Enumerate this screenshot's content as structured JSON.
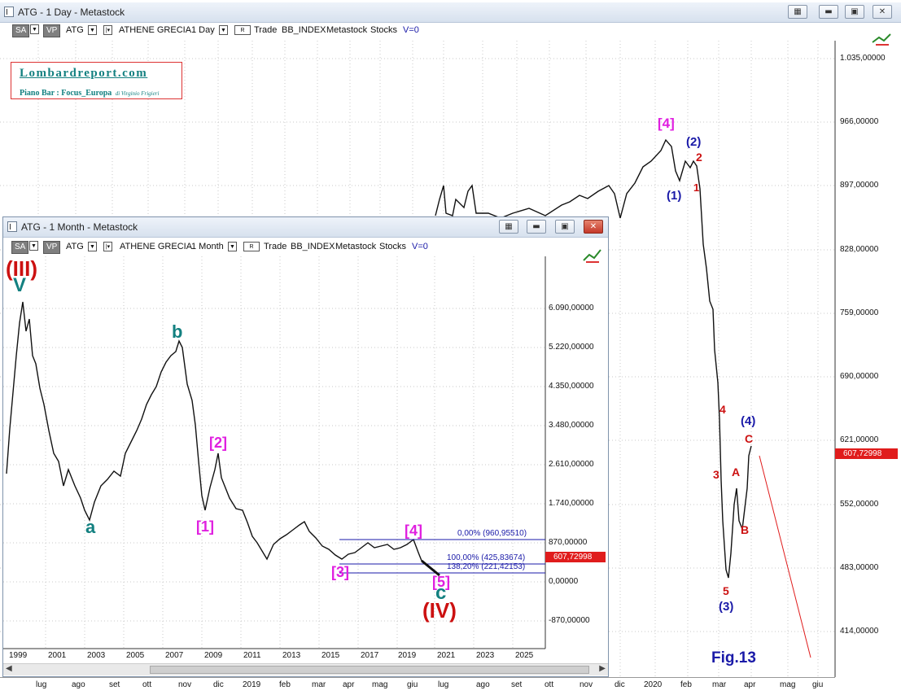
{
  "day_window": {
    "title": "ATG - 1 Day - Metastock",
    "toolbar": {
      "sa": "SA",
      "vp": "VP",
      "symbol": "ATG",
      "name": "ATHENE GRECIA",
      "period": "1 Day",
      "r": "R",
      "trade": "Trade",
      "index": "BB_INDEX",
      "metastock": "Metastock",
      "stocks": "Stocks",
      "v": "V=0"
    },
    "y_labels": [
      "1.035,00000",
      "966,00000",
      "897,00000",
      "828,00000",
      "759,00000",
      "690,00000",
      "621,00000",
      "552,00000",
      "483,00000",
      "414,00000"
    ],
    "price_tag": "607,72998",
    "x_labels": [
      "lug",
      "ago",
      "set",
      "ott",
      "nov",
      "dic",
      "2019",
      "feb",
      "mar",
      "apr",
      "mag",
      "giu",
      "lug",
      "ago",
      "set",
      "ott",
      "nov",
      "dic",
      "2020",
      "feb",
      "mar",
      "apr",
      "mag",
      "giu"
    ],
    "wave_labels": {
      "top4": "[4]",
      "w2": "(2)",
      "w1": "(1)",
      "r2": "2",
      "r1": "1",
      "r4": "4",
      "r3": "3",
      "r5": "5",
      "w3": "(3)",
      "w4": "(4)",
      "rA": "A",
      "rB": "B",
      "rC": "C"
    },
    "fig": "Fig.13"
  },
  "logo": {
    "site": "Lombardreport.com",
    "line2": "Piano Bar : Focus_Europa",
    "line2b": "di Virginio Frigieri"
  },
  "month_window": {
    "title": "ATG - 1 Month - Metastock",
    "toolbar": {
      "sa": "SA",
      "vp": "VP",
      "symbol": "ATG",
      "name": "ATHENE GRECIA",
      "period": "1 Month",
      "r": "R",
      "trade": "Trade",
      "index": "BB_INDEX",
      "metastock": "Metastock",
      "stocks": "Stocks",
      "v": "V=0"
    },
    "y_labels": [
      "6.090,00000",
      "5.220,00000",
      "4.350,00000",
      "3.480,00000",
      "2.610,00000",
      "1.740,00000",
      "870,00000",
      "0,00000",
      "-870,00000"
    ],
    "price_tag": "607,72998",
    "x_labels": [
      "1999",
      "2001",
      "2003",
      "2005",
      "2007",
      "2009",
      "2011",
      "2013",
      "2015",
      "2017",
      "2019",
      "2021",
      "2023",
      "2025"
    ],
    "fib": {
      "f0": "0,00% (960,95510)",
      "f100": "100,00% (425,83674)",
      "f138": "138,20% (221,42153)"
    },
    "wave_labels": {
      "III": "(III)",
      "V": "V",
      "a": "a",
      "b": "b",
      "w1": "[1]",
      "w2": "[2]",
      "w3": "[3]",
      "w4": "[4]",
      "w5": "[5]",
      "c": "c",
      "IV": "(IV)"
    }
  },
  "colors": {
    "red": "#e01c1c",
    "magenta": "#e020e0",
    "navy": "#1a1aa8",
    "teal": "#138080",
    "dark_red": "#cc1111"
  }
}
